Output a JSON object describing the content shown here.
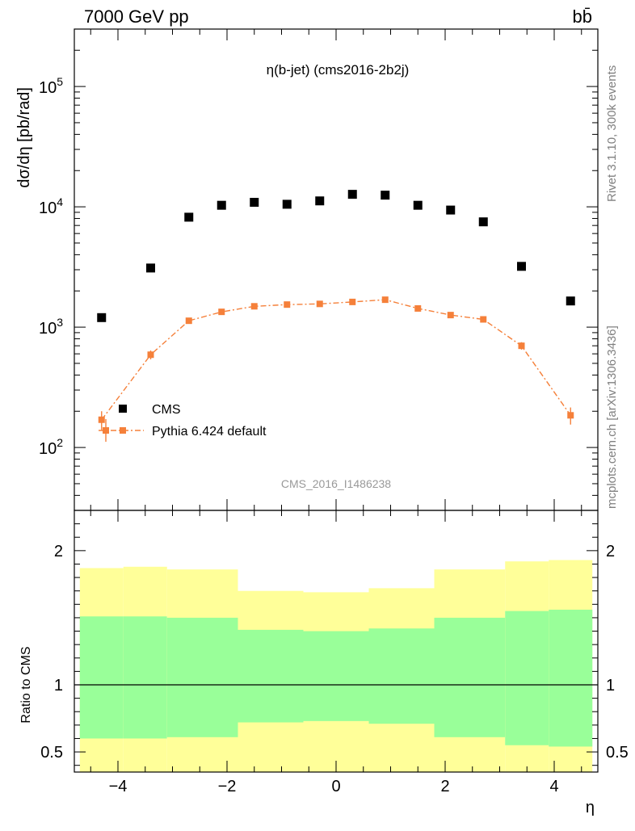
{
  "header": {
    "energy_label": "7000 GeV pp",
    "process_label": "bb̄"
  },
  "side_labels": {
    "rivet": "Rivet 3.1.10,  300k events",
    "mcplots": "mcplots.cern.ch [arXiv:1306.3436]"
  },
  "colors": {
    "mc": "#f5803a",
    "band_inner": "#99ff99",
    "band_outer": "#ffff99",
    "data": "#000000"
  },
  "chart_data": [
    {
      "type": "scatter",
      "title": "η(b-jet) (cms2016-2b2j)",
      "ylabel": "dσ/dη [pb/rad]",
      "xlabel": "",
      "yscale": "log",
      "xlim": [
        -4.8,
        4.8
      ],
      "ylim": [
        30,
        300000
      ],
      "yticks_major": [
        "10^2",
        "10^3",
        "10^4",
        "10^5"
      ],
      "watermark": "CMS_2016_I1486238",
      "legend_position": "bottom-left",
      "series": [
        {
          "name": "CMS",
          "marker": "square",
          "x": [
            -4.3,
            -3.4,
            -2.7,
            -2.1,
            -1.5,
            -0.9,
            -0.3,
            0.3,
            0.9,
            1.5,
            2.1,
            2.7,
            3.4,
            4.3
          ],
          "y": [
            1200,
            3100,
            8200,
            10300,
            10900,
            10500,
            11200,
            12700,
            12500,
            10300,
            9400,
            7500,
            3200,
            1650
          ]
        },
        {
          "name": "Pythia 6.424 default",
          "marker": "square-line-dashdot",
          "x": [
            -4.3,
            -3.4,
            -2.7,
            -2.1,
            -1.5,
            -0.9,
            -0.3,
            0.3,
            0.9,
            1.5,
            2.1,
            2.7,
            3.4,
            4.3
          ],
          "y": [
            170,
            590,
            1130,
            1340,
            1490,
            1540,
            1560,
            1620,
            1690,
            1430,
            1260,
            1160,
            700,
            185
          ],
          "yerr": [
            30,
            50,
            60,
            50,
            50,
            50,
            50,
            50,
            60,
            50,
            50,
            60,
            50,
            30
          ]
        }
      ]
    },
    {
      "type": "area",
      "title": "",
      "ylabel": "Ratio to CMS",
      "xlabel": "η",
      "xlim": [
        -4.8,
        4.8
      ],
      "ylim": [
        0.35,
        2.3
      ],
      "xticks": [
        "−4",
        "−2",
        "0",
        "2",
        "4"
      ],
      "yticks": [
        "0.5",
        "1",
        "2"
      ],
      "reference_line": 1,
      "bins": [
        {
          "lo": -4.7,
          "hi": -3.9,
          "inner": [
            0.6,
            1.51
          ],
          "outer": [
            0.35,
            1.87
          ]
        },
        {
          "lo": -3.9,
          "hi": -3.1,
          "inner": [
            0.6,
            1.51
          ],
          "outer": [
            0.35,
            1.88
          ]
        },
        {
          "lo": -3.1,
          "hi": -1.8,
          "inner": [
            0.61,
            1.5
          ],
          "outer": [
            0.35,
            1.86
          ]
        },
        {
          "lo": -1.8,
          "hi": -0.6,
          "inner": [
            0.72,
            1.41
          ],
          "outer": [
            0.35,
            1.7
          ]
        },
        {
          "lo": -0.6,
          "hi": 0.6,
          "inner": [
            0.73,
            1.4
          ],
          "outer": [
            0.35,
            1.69
          ]
        },
        {
          "lo": 0.6,
          "hi": 1.8,
          "inner": [
            0.71,
            1.42
          ],
          "outer": [
            0.35,
            1.72
          ]
        },
        {
          "lo": 1.8,
          "hi": 3.1,
          "inner": [
            0.61,
            1.5
          ],
          "outer": [
            0.35,
            1.86
          ]
        },
        {
          "lo": 3.1,
          "hi": 3.9,
          "inner": [
            0.55,
            1.55
          ],
          "outer": [
            0.35,
            1.92
          ]
        },
        {
          "lo": 3.9,
          "hi": 4.7,
          "inner": [
            0.54,
            1.56
          ],
          "outer": [
            0.35,
            1.93
          ]
        }
      ]
    }
  ]
}
